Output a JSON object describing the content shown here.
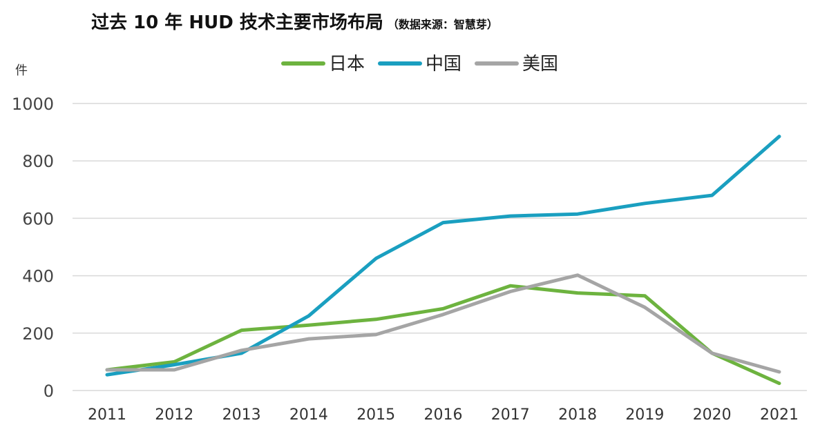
{
  "chart_data": {
    "type": "line",
    "title": "过去 10 年 HUD 技术主要市场布局",
    "subtitle": "（数据来源：智慧芽）",
    "ylabel": "件",
    "xlabel": "",
    "categories": [
      "2011",
      "2012",
      "2013",
      "2014",
      "2015",
      "2016",
      "2017",
      "2018",
      "2019",
      "2020",
      "2021"
    ],
    "ylim": [
      0,
      1000
    ],
    "yticks": [
      0,
      200,
      400,
      600,
      800,
      1000
    ],
    "grid": true,
    "legend_position": "top-center",
    "series": [
      {
        "name": "日本",
        "color": "#6db33f",
        "values": [
          72,
          100,
          210,
          228,
          248,
          285,
          365,
          340,
          330,
          130,
          25
        ]
      },
      {
        "name": "中国",
        "color": "#1a9fc0",
        "values": [
          55,
          90,
          130,
          260,
          460,
          585,
          608,
          615,
          652,
          680,
          885
        ]
      },
      {
        "name": "美国",
        "color": "#a5a5a5",
        "values": [
          72,
          72,
          140,
          180,
          195,
          265,
          345,
          402,
          290,
          130,
          65
        ]
      }
    ]
  }
}
